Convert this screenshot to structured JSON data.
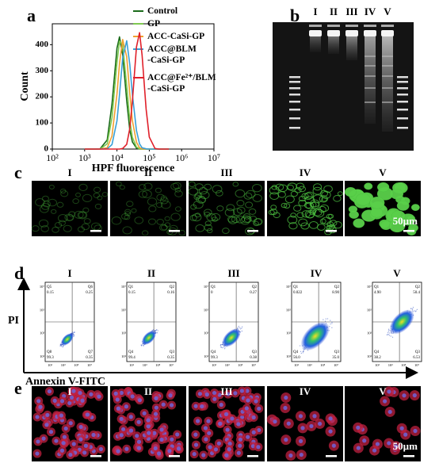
{
  "panel_labels": [
    "a",
    "b",
    "c",
    "d",
    "e"
  ],
  "chart_data": {
    "type": "line",
    "x_label": "HPF fluorescence",
    "y_label": "Count",
    "x": [
      1000,
      2000,
      3000,
      5000,
      7000,
      10000,
      12000,
      15000,
      20000,
      25000,
      30000,
      40000,
      50000,
      60000,
      80000,
      100000,
      150000,
      200000,
      400000
    ],
    "series": [
      {
        "name": "Control",
        "color": "#1a6b1a",
        "values": [
          0,
          0,
          1,
          35,
          172,
          386,
          430,
          362,
          186,
          73,
          27,
          4,
          0,
          0,
          0,
          0,
          0,
          0,
          0
        ]
      },
      {
        "name": "GP",
        "color": "#7ec850",
        "values": [
          0,
          0,
          0,
          20,
          120,
          331,
          413,
          400,
          243,
          109,
          45,
          8,
          1,
          0,
          0,
          0,
          0,
          0,
          0
        ]
      },
      {
        "name": "ACC-CaSi-GP",
        "color": "#f0a030",
        "values": [
          0,
          0,
          0,
          5,
          50,
          211,
          327,
          420,
          353,
          211,
          108,
          26,
          5,
          1,
          0,
          0,
          0,
          0,
          0
        ]
      },
      {
        "name": "ACC@BLM\n-CaSi-GP",
        "color": "#3aa0d8",
        "values": [
          0,
          0,
          0,
          1,
          17,
          108,
          208,
          349,
          415,
          324,
          208,
          71,
          20,
          5,
          1,
          0,
          0,
          0,
          0
        ]
      },
      {
        "name": "ACC@Fe²⁺/BLM\n-CaSi-GP",
        "color": "#e0202a",
        "values": [
          0,
          0,
          0,
          0,
          0,
          0,
          0,
          2,
          18,
          79,
          185,
          391,
          446,
          360,
          153,
          46,
          2,
          0,
          0
        ]
      }
    ],
    "log_x": true,
    "xlim": [
      100,
      10000000
    ],
    "xticks": [
      {
        "value": 100,
        "label": "10²"
      },
      {
        "value": 1000,
        "label": "10³"
      },
      {
        "value": 10000,
        "label": "10⁴"
      },
      {
        "value": 100000,
        "label": "10⁵"
      },
      {
        "value": 1000000,
        "label": "10⁶"
      },
      {
        "value": 10000000,
        "label": "10⁷"
      }
    ],
    "ylim": [
      0,
      480
    ],
    "yticks": [
      0,
      100,
      200,
      300,
      400
    ]
  },
  "gel": {
    "lanes": [
      "I",
      "II",
      "III",
      "IV",
      "V"
    ]
  },
  "microscopy_c": {
    "samples": [
      "I",
      "II",
      "III",
      "IV",
      "V"
    ],
    "scale_bar": "50µm"
  },
  "flow_d": {
    "y_label": "PI",
    "x_label": "Annexin V-FITC",
    "tick_labels": [
      "10¹",
      "10³",
      "10⁵",
      "10⁷"
    ],
    "plots": [
      {
        "sample": "I",
        "quadrants": [
          [
            "Q5",
            "0.15"
          ],
          [
            "Q6",
            "0.25"
          ],
          [
            "Q8",
            "99.3"
          ],
          [
            "Q7",
            "0.35"
          ]
        ]
      },
      {
        "sample": "II",
        "quadrants": [
          [
            "Q1",
            "0.15"
          ],
          [
            "Q2",
            "0.16"
          ],
          [
            "Q4",
            "99.4"
          ],
          [
            "Q3",
            "0.35"
          ]
        ]
      },
      {
        "sample": "III",
        "quadrants": [
          [
            "Q1",
            "0"
          ],
          [
            "Q2",
            "0.27"
          ],
          [
            "Q4",
            "99.3"
          ],
          [
            "Q3",
            "0.38"
          ]
        ]
      },
      {
        "sample": "IV",
        "quadrants": [
          [
            "Q1",
            "0.022"
          ],
          [
            "Q2",
            "8.90"
          ],
          [
            "Q4",
            "56.0"
          ],
          [
            "Q3",
            "35.0"
          ]
        ]
      },
      {
        "sample": "V",
        "quadrants": [
          [
            "Q1",
            "4.90"
          ],
          [
            "Q2",
            "50.4"
          ],
          [
            "Q4",
            "38.2"
          ],
          [
            "Q3",
            "6.53"
          ]
        ]
      }
    ]
  },
  "microscopy_e": {
    "samples": [
      "I",
      "II",
      "III",
      "IV",
      "V"
    ],
    "scale_bar": "50µm"
  }
}
